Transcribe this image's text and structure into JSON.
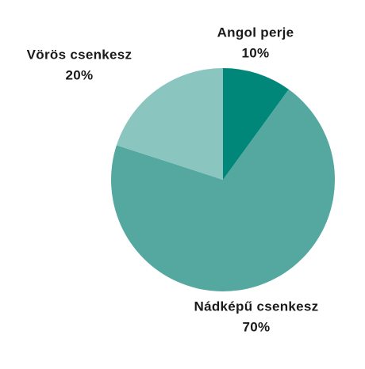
{
  "chart_data": {
    "type": "pie",
    "categories": [
      "Angol perje",
      "Nádképű csenkesz",
      "Vörös csenkesz"
    ],
    "values": [
      10,
      70,
      20
    ],
    "value_labels": [
      "10%",
      "70%",
      "20%"
    ],
    "colors": [
      "#00877a",
      "#55a89f",
      "#8bc5bf"
    ]
  }
}
